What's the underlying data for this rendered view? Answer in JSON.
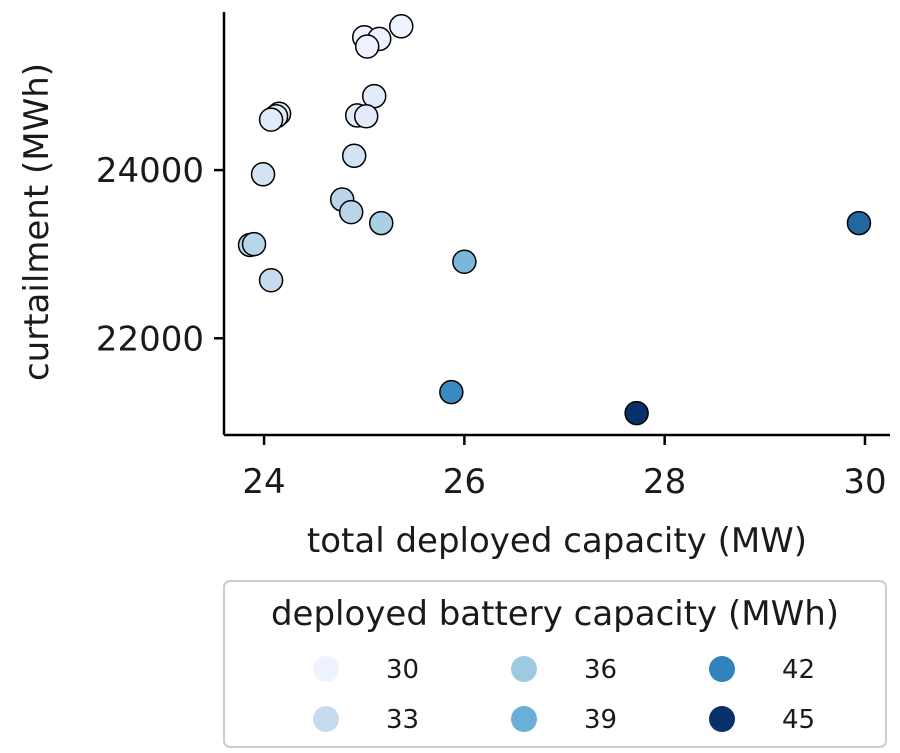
{
  "chart_data": {
    "type": "scatter",
    "xlabel": "total deployed capacity (MW)",
    "ylabel": "curtailment (MWh)",
    "xlim": [
      23.6,
      30.25
    ],
    "ylim": [
      20850,
      25880
    ],
    "xticks": [
      24,
      26,
      28,
      30
    ],
    "xtick_labels": [
      "24",
      "26",
      "28",
      "30"
    ],
    "yticks": [
      22000,
      24000
    ],
    "ytick_labels": [
      "22000",
      "24000"
    ],
    "grid": false,
    "legend": {
      "title": "deployed battery capacity (MWh)",
      "placement": "below",
      "entries": [
        {
          "label": "30",
          "value": 30
        },
        {
          "label": "33",
          "value": 33
        },
        {
          "label": "36",
          "value": 36
        },
        {
          "label": "39",
          "value": 39
        },
        {
          "label": "42",
          "value": 42
        },
        {
          "label": "45",
          "value": 45
        }
      ]
    },
    "color_scale": {
      "name": "Blues",
      "min": 30,
      "max": 45,
      "stops": [
        "#eff3ff",
        "#c6dbef",
        "#9ecae1",
        "#6baed6",
        "#3182bd",
        "#08306b"
      ]
    },
    "points": [
      {
        "x": 25.37,
        "y": 25710,
        "c": 30
      },
      {
        "x": 25.0,
        "y": 25580,
        "c": 30
      },
      {
        "x": 25.15,
        "y": 25560,
        "c": 30
      },
      {
        "x": 25.03,
        "y": 25470,
        "c": 30
      },
      {
        "x": 25.1,
        "y": 24880,
        "c": 31
      },
      {
        "x": 24.15,
        "y": 24670,
        "c": 31
      },
      {
        "x": 24.12,
        "y": 24640,
        "c": 31
      },
      {
        "x": 24.07,
        "y": 24600,
        "c": 31
      },
      {
        "x": 24.93,
        "y": 24650,
        "c": 31
      },
      {
        "x": 25.02,
        "y": 24640,
        "c": 31
      },
      {
        "x": 24.9,
        "y": 24170,
        "c": 32
      },
      {
        "x": 23.99,
        "y": 23950,
        "c": 32
      },
      {
        "x": 24.78,
        "y": 23650,
        "c": 34
      },
      {
        "x": 24.87,
        "y": 23500,
        "c": 34
      },
      {
        "x": 25.17,
        "y": 23370,
        "c": 35
      },
      {
        "x": 23.86,
        "y": 23110,
        "c": 34
      },
      {
        "x": 23.9,
        "y": 23120,
        "c": 34
      },
      {
        "x": 24.07,
        "y": 22690,
        "c": 33
      },
      {
        "x": 26.0,
        "y": 22910,
        "c": 38
      },
      {
        "x": 25.87,
        "y": 21360,
        "c": 41.5
      },
      {
        "x": 27.72,
        "y": 21110,
        "c": 45
      },
      {
        "x": 29.94,
        "y": 23370,
        "c": 43
      }
    ]
  }
}
